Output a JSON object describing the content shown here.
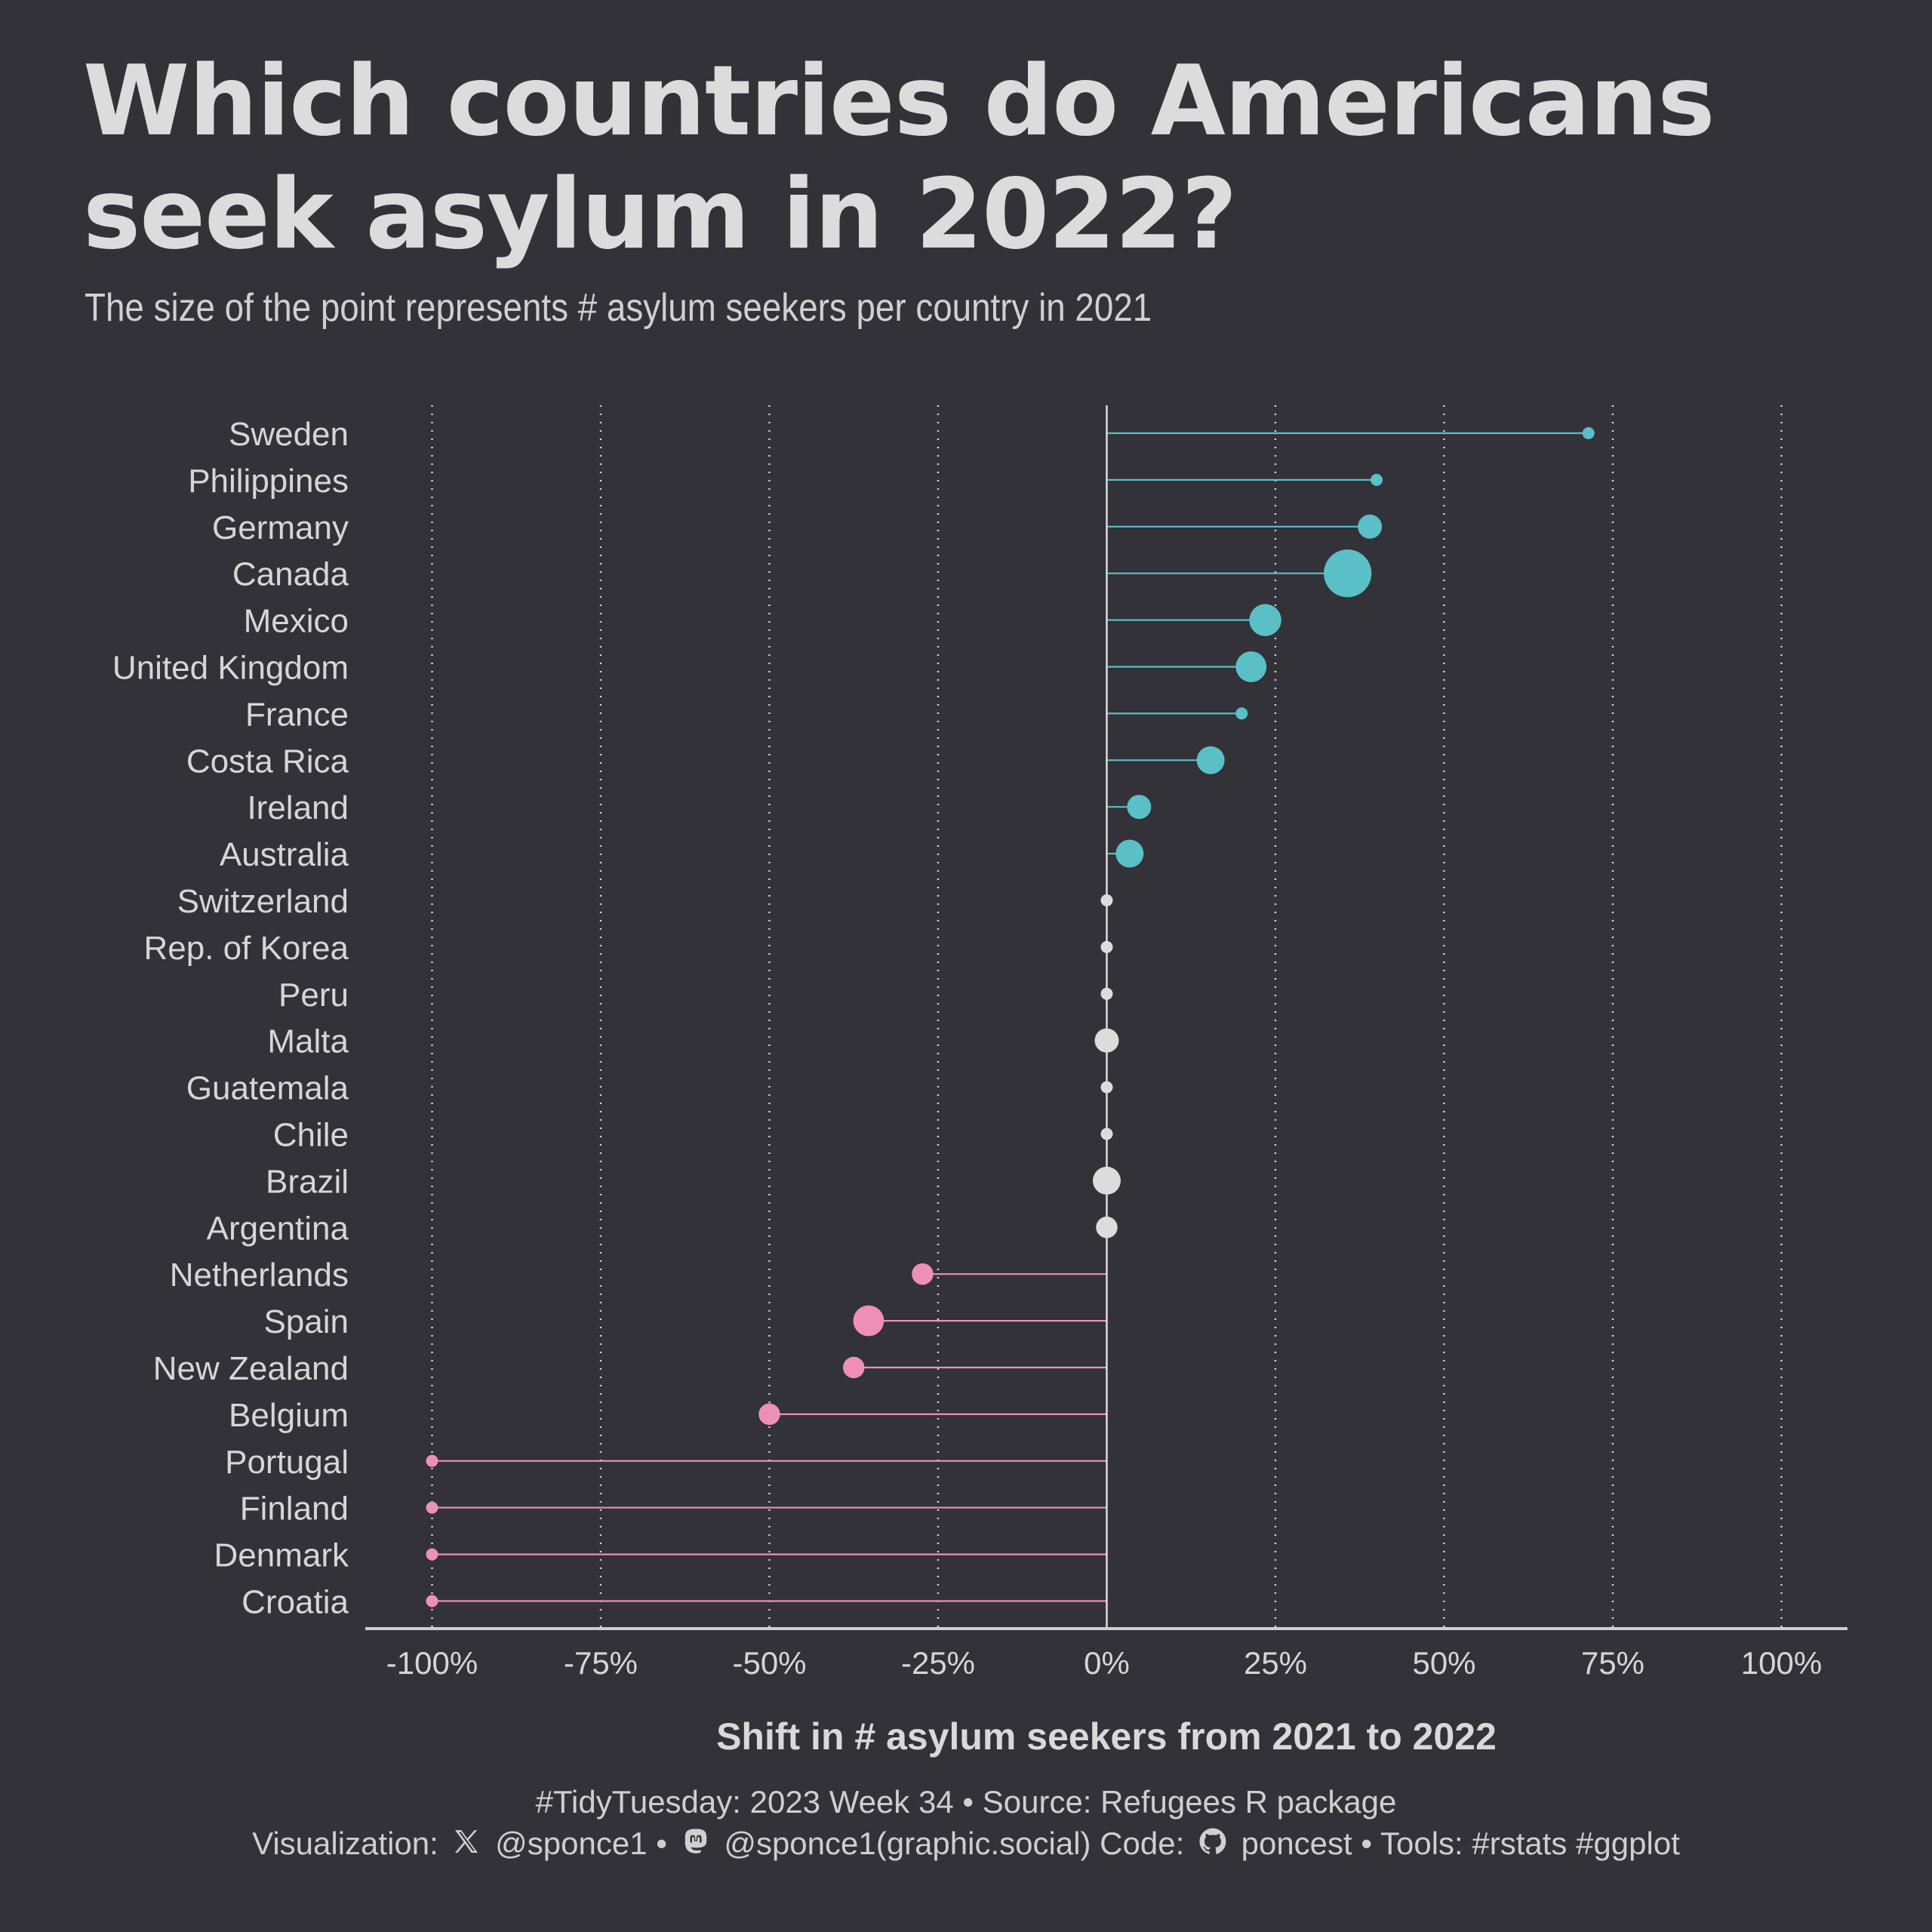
{
  "title_line1": "Which countries do Americans",
  "title_line2": "seek asylum in 2022?",
  "subtitle": "The size of the point represents # asylum seekers per country in 2021",
  "caption": {
    "line1": "#TidyTuesday: 2023 Week 34 • Source: Refugees R package",
    "viz_label": "Visualization:",
    "x_handle": "@sponce1 •",
    "mastodon_handle": "@sponce1(graphic.social) Code:",
    "github_handle": "poncest • Tools: #rstats #ggplot"
  },
  "colors": {
    "background": "#323238",
    "positive": "#5bbfc7",
    "negative": "#ee8fb8",
    "neutral": "#dcdcdc",
    "grid": "#d9d9d9"
  },
  "icons": [
    "x-logo-icon",
    "mastodon-logo-icon",
    "github-logo-icon"
  ],
  "chart_data": {
    "type": "lollipop",
    "title": "Which countries do Americans seek asylum in 2022?",
    "subtitle": "The size of the point represents # asylum seekers per country in 2021",
    "xlabel": "Shift in # asylum seekers from 2021 to 2022",
    "ylabel": "",
    "xlim": [
      -110,
      110
    ],
    "xticks": [
      -100,
      -75,
      -50,
      -25,
      0,
      25,
      50,
      75,
      100
    ],
    "xtick_labels": [
      "-100%",
      "-75%",
      "-50%",
      "-25%",
      "0%",
      "25%",
      "50%",
      "75%",
      "100%"
    ],
    "grid": "vertical dotted",
    "legend": "none",
    "categories": [
      "Sweden",
      "Philippines",
      "Germany",
      "Canada",
      "Mexico",
      "United Kingdom",
      "France",
      "Costa Rica",
      "Ireland",
      "Australia",
      "Switzerland",
      "Rep. of Korea",
      "Peru",
      "Malta",
      "Guatemala",
      "Chile",
      "Brazil",
      "Argentina",
      "Netherlands",
      "Spain",
      "New Zealand",
      "Belgium",
      "Portugal",
      "Finland",
      "Denmark",
      "Croatia"
    ],
    "values": [
      71.4,
      40,
      39,
      35.7,
      23.5,
      21.4,
      20,
      15.4,
      4.8,
      3.4,
      0,
      0,
      0,
      0,
      0,
      0,
      0,
      0,
      -27.3,
      -35.3,
      -37.5,
      -50,
      -100,
      -100,
      -100,
      -100
    ],
    "point_size_2021_relative": [
      1,
      1,
      2,
      14,
      4.5,
      4,
      1,
      3,
      2,
      3,
      1,
      1,
      1,
      2,
      1,
      1,
      3,
      1.5,
      1.5,
      4,
      1.5,
      1.5,
      1,
      1,
      1,
      1
    ]
  }
}
